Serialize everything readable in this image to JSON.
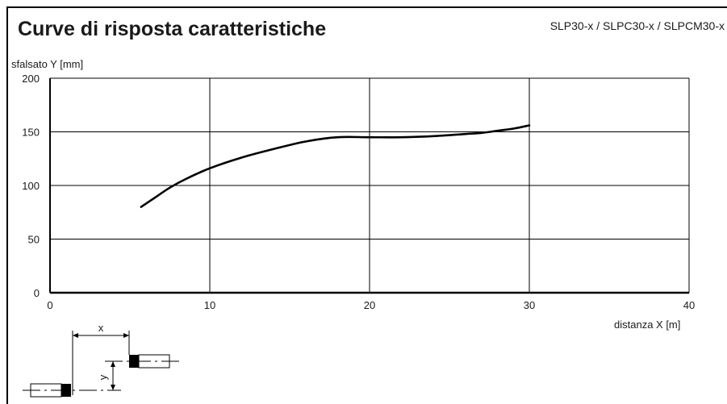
{
  "header": {
    "title": "Curve di risposta caratteristiche",
    "models": "SLP30-x / SLPC30-x / SLPCM30-x"
  },
  "chart_data": {
    "type": "line",
    "title": "Curve di risposta caratteristiche",
    "xlabel": "distanza X [m]",
    "ylabel": "sfalsato Y [mm]",
    "xlim": [
      0,
      40
    ],
    "ylim": [
      0,
      200
    ],
    "xticks": [
      0,
      10,
      20,
      30,
      40
    ],
    "yticks": [
      0,
      50,
      100,
      150,
      200
    ],
    "grid": true,
    "series": [
      {
        "x": [
          5.7,
          6.5,
          7.5,
          8.5,
          10,
          12,
          14,
          16,
          18,
          20,
          22,
          24,
          26,
          27,
          28,
          29,
          30
        ],
        "y": [
          80,
          88,
          98,
          106,
          116,
          126,
          134,
          141,
          145,
          145,
          145,
          146,
          148,
          149,
          151,
          153,
          156
        ],
        "color": "#000000"
      }
    ]
  },
  "diagram": {
    "x_label": "x",
    "y_label": "y"
  }
}
